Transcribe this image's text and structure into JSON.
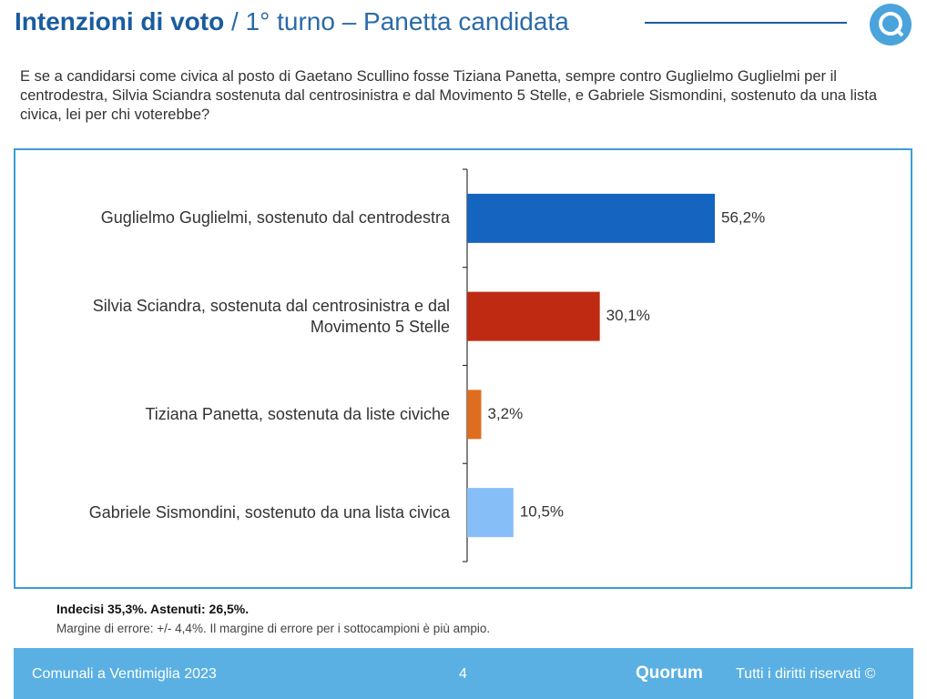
{
  "header": {
    "title": "Intenzioni di voto",
    "subtitle": "/ 1° turno – Panetta candidata"
  },
  "question": "E se a candidarsi come civica al posto di Gaetano Scullino fosse Tiziana Panetta, sempre contro Guglielmo Guglielmi per il centrodestra, Silvia Sciandra sostenuta dal centrosinistra e dal Movimento 5 Stelle, e Gabriele Sismondini, sostenuto da una lista civica, lei per chi voterebbe?",
  "chart_data": {
    "type": "bar",
    "orientation": "horizontal",
    "categories": [
      "Guglielmo Guglielmi, sostenuto dal centrodestra",
      "Silvia Sciandra, sostenuta dal centrosinistra e dal Movimento 5 Stelle",
      "Tiziana Panetta, sostenuta da liste civiche",
      "Gabriele Sismondini, sostenuto da una lista civica"
    ],
    "values": [
      56.2,
      30.1,
      3.2,
      10.5
    ],
    "value_labels": [
      "56,2%",
      "30,1%",
      "3,2%",
      "10,5%"
    ],
    "colors": [
      "#1565c0",
      "#bf2a12",
      "#df6d1f",
      "#86bff7"
    ]
  },
  "notes": [
    "Indecisi 35,3%. Astenuti: 26,5%.",
    "Margine di errore: +/- 4,4%. Il margine di errore per i sottocampioni è più ampio."
  ],
  "footer": {
    "left": "Comunali a Ventimiglia 2023",
    "page": "4",
    "brand": "Quorum",
    "rights": "Tutti i diritti riservati ©"
  }
}
